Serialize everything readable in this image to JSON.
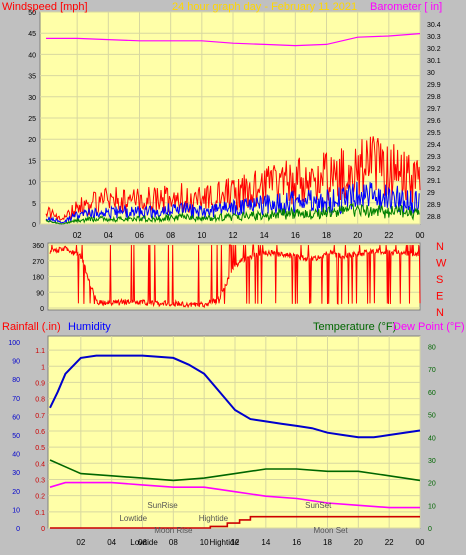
{
  "colors": {
    "panel_bg": "#ffffa8",
    "frame_bg": "#c0c0c0",
    "windspeed": "#ff0000",
    "gust": "#ff0000",
    "average": "#0000ff",
    "low": "#008000",
    "barometer": "#ff00ff",
    "direction": "#ff0000",
    "humidity": "#0000cc",
    "temperature": "#006600",
    "dew_point": "#ff00ff",
    "rainfall": "#cc0000",
    "title": "#ffd700",
    "label_red": "#ff0000",
    "label_magenta": "#ff00ff",
    "label_blue": "#0000ff",
    "label_green": "#006600",
    "annotation": "#555555"
  },
  "chart_data": [
    {
      "type": "line",
      "title": "24 hour graph day - February 11 2021",
      "ylabel": "Windspeed [mph]",
      "y2label": "Barometer [ in]",
      "ylim": [
        0,
        50
      ],
      "y2lim": [
        28.8,
        30.5
      ],
      "yticks": [
        "0",
        "5",
        "10",
        "15",
        "20",
        "25",
        "30",
        "35",
        "40",
        "45",
        "50"
      ],
      "y2ticks": [
        "28.8",
        "28.9",
        "29",
        "29.1",
        "29.2",
        "29.3",
        "29.4",
        "29.5",
        "29.6",
        "29.7",
        "29.8",
        "29.9",
        "30",
        "30.1",
        "30.2",
        "30.3",
        "30.4"
      ],
      "x_ticks": [
        "02",
        "04",
        "06",
        "08",
        "10",
        "12",
        "14",
        "16",
        "18",
        "20",
        "22",
        "00"
      ],
      "grid": true,
      "series": [
        {
          "key": "gust",
          "axis": "left",
          "x": [
            0,
            1,
            2,
            3,
            4,
            5,
            6,
            7,
            8,
            9,
            10,
            11,
            12,
            13,
            14,
            15,
            16,
            17,
            18,
            19,
            20,
            21,
            22,
            23,
            24
          ],
          "y": [
            4,
            1,
            5,
            6,
            7,
            7,
            7,
            7,
            8,
            8,
            7,
            8,
            9,
            10,
            11,
            12,
            13,
            13,
            14,
            15,
            16,
            17,
            16,
            14,
            12
          ]
        },
        {
          "key": "average",
          "axis": "left",
          "x": [
            0,
            1,
            2,
            3,
            4,
            5,
            6,
            7,
            8,
            9,
            10,
            11,
            12,
            13,
            14,
            15,
            16,
            17,
            18,
            19,
            20,
            21,
            22,
            23,
            24
          ],
          "y": [
            2,
            0.5,
            2.5,
            3,
            3.5,
            3.5,
            3.5,
            3.5,
            4,
            4,
            3.5,
            4,
            4.5,
            5,
            5.5,
            6,
            6.5,
            6.5,
            7,
            7,
            8,
            8,
            7.5,
            7,
            6
          ]
        },
        {
          "key": "low",
          "axis": "left",
          "x": [
            0,
            1,
            2,
            3,
            4,
            5,
            6,
            7,
            8,
            9,
            10,
            11,
            12,
            13,
            14,
            15,
            16,
            17,
            18,
            19,
            20,
            21,
            22,
            23,
            24
          ],
          "y": [
            1,
            0,
            1,
            1.5,
            1.5,
            1.5,
            1.5,
            1.5,
            2,
            2,
            1.5,
            2,
            2,
            2.5,
            2.5,
            3,
            3,
            3,
            3.5,
            3.5,
            4,
            4,
            3.5,
            3.5,
            3
          ]
        },
        {
          "key": "barometer",
          "axis": "right",
          "x": [
            0,
            2,
            4,
            6,
            8,
            10,
            12,
            14,
            16,
            18,
            20,
            22,
            24
          ],
          "y": [
            30.28,
            30.28,
            30.27,
            30.26,
            30.26,
            30.26,
            30.24,
            30.23,
            30.22,
            30.23,
            30.29,
            30.3,
            30.32
          ]
        }
      ]
    },
    {
      "type": "scatter",
      "title": "",
      "y_ticks": [
        "360",
        "270",
        "180",
        "90",
        "0"
      ],
      "ylim": [
        0,
        360
      ],
      "compass": [
        "N",
        "W",
        "S",
        "E",
        "N"
      ],
      "x_ticks": [
        "02",
        "04",
        "06",
        "08",
        "10",
        "12",
        "14",
        "16",
        "18",
        "20",
        "22",
        "00"
      ],
      "series": [
        {
          "key": "direction",
          "x": [
            0,
            1,
            2,
            3,
            4,
            5,
            6,
            7,
            8,
            9,
            10,
            11,
            12,
            13,
            14,
            15,
            16,
            17,
            18,
            19,
            20,
            21,
            22,
            23,
            24
          ],
          "y": [
            330,
            340,
            300,
            40,
            30,
            40,
            35,
            30,
            30,
            25,
            20,
            60,
            250,
            300,
            320,
            310,
            300,
            280,
            320,
            300,
            310,
            330,
            320,
            320,
            310
          ]
        }
      ]
    },
    {
      "type": "line",
      "title": "",
      "ylabel": "Rainfall (.in)",
      "y2label": "Humidity",
      "y3label": "Temperature (°F)",
      "y4label": "Dew Point (°F)",
      "humidity_ticks": [
        "0",
        "10",
        "20",
        "30",
        "40",
        "50",
        "60",
        "70",
        "80",
        "90",
        "100"
      ],
      "rain_ticks": [
        "0",
        "0.1",
        "0.2",
        "0.3",
        "0.4",
        "0.5",
        "0.6",
        "0.7",
        "0.8",
        "0.9",
        "1",
        "1.1"
      ],
      "temp_ticks": [
        "0",
        "10",
        "20",
        "30",
        "40",
        "50",
        "60",
        "70",
        "80"
      ],
      "rain_lim": [
        0,
        1.15
      ],
      "temp_lim": [
        0,
        82
      ],
      "x_ticks": [
        "02",
        "04",
        "06",
        "08",
        "10",
        "12",
        "14",
        "16",
        "18",
        "20",
        "22",
        "00"
      ],
      "series": [
        {
          "key": "humidity",
          "axis": "temp",
          "x": [
            0,
            0.5,
            1,
            2,
            3,
            4,
            6,
            8,
            9,
            10,
            11,
            12,
            13,
            14,
            15,
            16,
            17,
            18,
            19,
            20,
            21,
            22,
            23,
            24
          ],
          "y": [
            53,
            60,
            68,
            75,
            76,
            76,
            76,
            75,
            72,
            68,
            60,
            52,
            48,
            47,
            46,
            45,
            44,
            42,
            41,
            40,
            40,
            41,
            42,
            43
          ]
        },
        {
          "key": "temperature",
          "axis": "temp",
          "x": [
            0,
            1,
            2,
            4,
            6,
            8,
            10,
            12,
            14,
            16,
            18,
            20,
            22,
            24
          ],
          "y": [
            30,
            27,
            24,
            23,
            22,
            21,
            22,
            24,
            26,
            26,
            25,
            25,
            23,
            21
          ]
        },
        {
          "key": "dew_point",
          "axis": "temp",
          "x": [
            0,
            1,
            2,
            4,
            6,
            8,
            10,
            12,
            14,
            16,
            18,
            20,
            22,
            24
          ],
          "y": [
            18,
            20,
            20,
            20,
            19,
            18,
            18,
            16,
            14,
            13,
            11,
            10,
            9,
            9
          ]
        },
        {
          "key": "rainfall",
          "axis": "rain",
          "x": [
            0,
            10.4,
            10.4,
            11.5,
            11.5,
            12.3,
            12.3,
            13,
            13,
            24
          ],
          "y": [
            0,
            0,
            0.01,
            0.01,
            0.03,
            0.03,
            0.05,
            0.05,
            0.07,
            0.07
          ]
        }
      ],
      "annotations": [
        {
          "text": "SunRise",
          "x": 7.3,
          "row": 1
        },
        {
          "text": "Lowtide",
          "x": 5.4,
          "row": 2
        },
        {
          "text": "Moon Rise",
          "x": 8.0,
          "row": 3
        },
        {
          "text": "Hightide",
          "x": 10.6,
          "row": 2
        },
        {
          "text": "SunSet",
          "x": 17.4,
          "row": 1
        },
        {
          "text": "Moon Set",
          "x": 18.2,
          "row": 3
        },
        {
          "text": "Lowtide",
          "x": 6.1,
          "row": 4
        },
        {
          "text": "Hightide",
          "x": 11.3,
          "row": 4
        }
      ]
    }
  ]
}
